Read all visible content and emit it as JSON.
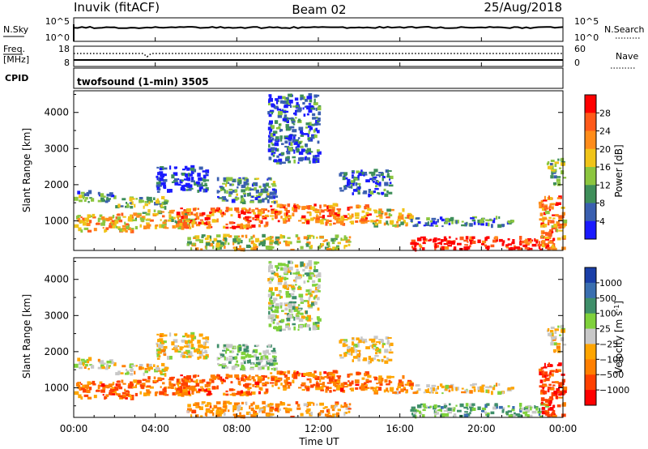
{
  "header": {
    "title": "Inuvik (fitACF)",
    "beam": "Beam 02",
    "date": "25/Aug/2018"
  },
  "nsky_panel": {
    "left_label": "N.Sky",
    "left_ticks": [
      "10^5",
      "10^0"
    ],
    "right_ticks": [
      "10^5",
      "10^0"
    ],
    "right_label": "N.Search"
  },
  "freq_panel": {
    "left_label_line1": "Freq.",
    "left_label_line2": "[MHz]",
    "left_ticks": [
      "18",
      "8"
    ],
    "right_ticks": [
      "60",
      "0"
    ],
    "right_label": "Nave"
  },
  "cpid": {
    "label": "CPID",
    "program": "twofsound (1-min) 3505"
  },
  "axes": {
    "xlabel": "Time UT",
    "ylabel": "Slant Range [km]",
    "xticks": [
      "00:00",
      "04:00",
      "08:00",
      "12:00",
      "16:00",
      "20:00",
      "00:00"
    ],
    "yticks": [
      "1000",
      "2000",
      "3000",
      "4000"
    ]
  },
  "power_scale": {
    "label": "Power [dB]",
    "ticks": [
      "4",
      "8",
      "12",
      "16",
      "20",
      "24",
      "28"
    ],
    "colors": [
      "#1a1aff",
      "#3a5fb0",
      "#3f8f5a",
      "#8cc63f",
      "#f0c419",
      "#ff8c1a",
      "#ff5a1a",
      "#ff0000"
    ]
  },
  "velocity_scale": {
    "label": "Velocity [m s",
    "label_sup": "-1",
    "label_end": "]",
    "ticks": [
      "1000",
      "500",
      "100",
      "25",
      "−25",
      "−100",
      "−500",
      "−1000"
    ],
    "colors": [
      "#1a3fa8",
      "#3a6fb0",
      "#3f8f6a",
      "#7fd13b",
      "#c8c8c8",
      "#ffa500",
      "#ff7f00",
      "#ff4000",
      "#ff0000"
    ]
  },
  "chart_data": {
    "type": "heatmap",
    "x_range_hours": [
      0,
      24
    ],
    "y_range_km": [
      180,
      4600
    ],
    "regions": [
      {
        "t0": 0.0,
        "t1": 2.0,
        "r0": 1520,
        "r1": 1800,
        "p": 0.3,
        "v": -0.05
      },
      {
        "t0": 2.0,
        "t1": 4.5,
        "r0": 1350,
        "r1": 1650,
        "p": 0.4,
        "v": -0.1
      },
      {
        "t0": 0.0,
        "t1": 3.0,
        "r0": 700,
        "r1": 1200,
        "p": 0.6,
        "v": -0.5
      },
      {
        "t0": 3.0,
        "t1": 6.0,
        "r0": 800,
        "r1": 1300,
        "p": 0.55,
        "v": -0.45
      },
      {
        "t0": 5.0,
        "t1": 9.5,
        "r0": 800,
        "r1": 1350,
        "p": 0.78,
        "v": -0.55
      },
      {
        "t0": 9.5,
        "t1": 14.5,
        "r0": 900,
        "r1": 1450,
        "p": 0.72,
        "v": -0.5
      },
      {
        "t0": 14.5,
        "t1": 16.5,
        "r0": 850,
        "r1": 1300,
        "p": 0.55,
        "v": -0.4
      },
      {
        "t0": 16.5,
        "t1": 21.5,
        "r0": 850,
        "r1": 1100,
        "p": 0.25,
        "v": -0.15
      },
      {
        "t0": 16.5,
        "t1": 23.2,
        "r0": 200,
        "r1": 550,
        "p": 0.92,
        "v": 0.3
      },
      {
        "t0": 4.0,
        "t1": 6.5,
        "r0": 1800,
        "r1": 2500,
        "p": 0.15,
        "v": -0.05
      },
      {
        "t0": 7.0,
        "t1": 10.0,
        "r0": 1500,
        "r1": 2200,
        "p": 0.3,
        "v": 0.2
      },
      {
        "t0": 13.0,
        "t1": 15.5,
        "r0": 1700,
        "r1": 2400,
        "p": 0.2,
        "v": -0.05
      },
      {
        "t0": 22.8,
        "t1": 24.0,
        "r0": 200,
        "r1": 1700,
        "p": 0.7,
        "v": -0.7
      },
      {
        "t0": 23.2,
        "t1": 24.0,
        "r0": 2000,
        "r1": 2700,
        "p": 0.35,
        "v": -0.1
      },
      {
        "t0": 9.5,
        "t1": 12.0,
        "r0": 2600,
        "r1": 4500,
        "p": 0.2,
        "v": 0.1
      },
      {
        "t0": 5.5,
        "t1": 13.5,
        "r0": 200,
        "r1": 600,
        "p": 0.5,
        "v": -0.3
      }
    ]
  }
}
